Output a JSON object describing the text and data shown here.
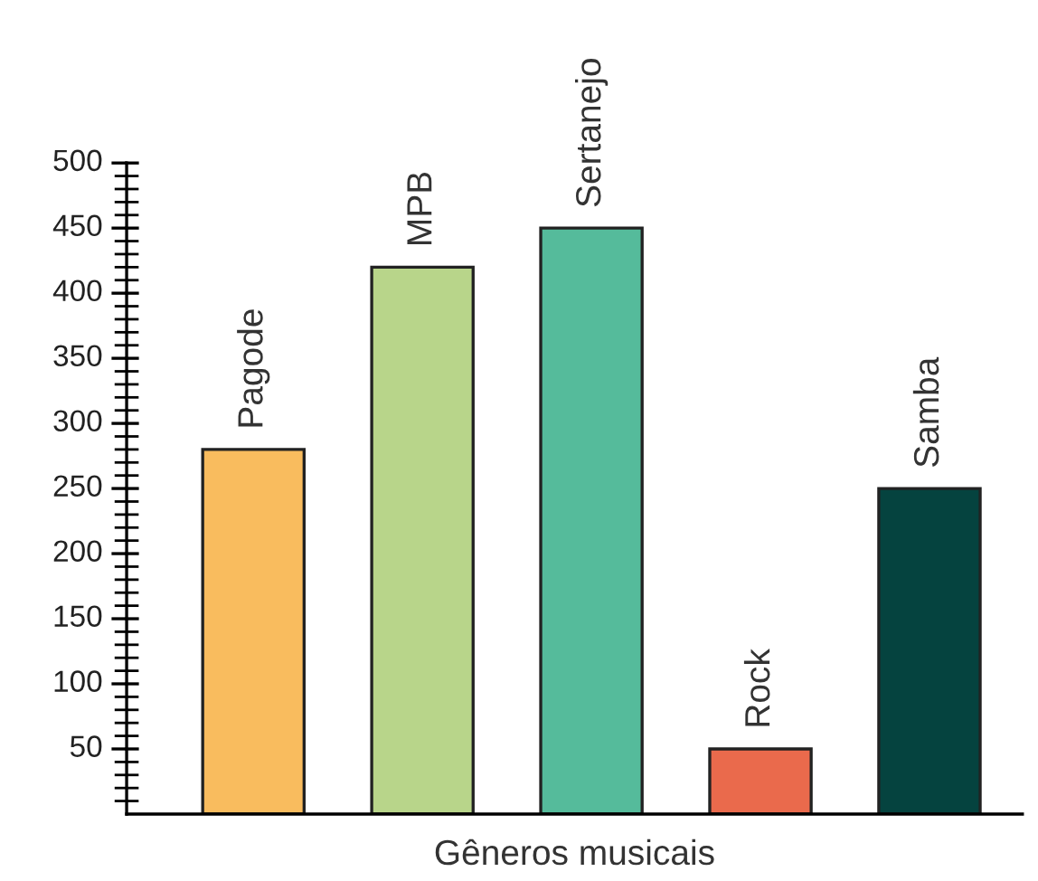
{
  "chart_data": {
    "type": "bar",
    "xlabel": "Gêneros musicais",
    "categories": [
      "Pagode",
      "MPB",
      "Sertanejo",
      "Rock",
      "Samba"
    ],
    "values": [
      280,
      420,
      450,
      50,
      250
    ],
    "colors": [
      "#f9bc5e",
      "#b8d58a",
      "#55bb9b",
      "#ea6a4c",
      "#05433f"
    ],
    "ylim": [
      0,
      500
    ],
    "yticks": [
      50,
      100,
      150,
      200,
      250,
      300,
      350,
      400,
      450,
      500
    ],
    "grid": false,
    "legend": false
  }
}
